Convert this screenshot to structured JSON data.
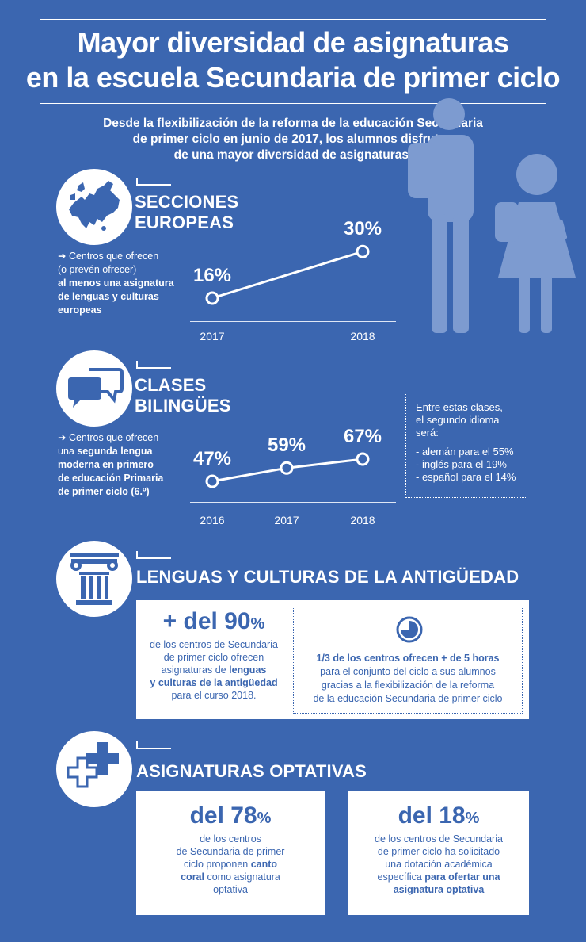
{
  "title": {
    "line1": "Mayor diversidad de asignaturas",
    "line2": "en la escuela Secundaria de primer ciclo"
  },
  "subtitle": {
    "line1": "Desde la flexibilización de la reforma de la educación Secundaria",
    "line2": "de primer ciclo en junio de 2017, los alumnos disfrutan",
    "line3": "de una mayor diversidad de asignaturas."
  },
  "colors": {
    "background": "#3b66b0",
    "card": "#ffffff",
    "accent": "#3b66b0"
  },
  "sections": {
    "europeas": {
      "icon": "europe-map-icon",
      "heading_l1": "SECCIONES",
      "heading_l2": "EUROPEAS",
      "desc": {
        "l1": "➜ Centros que ofrecen",
        "l2": "(o prevén ofrecer)",
        "l3": "al menos una asignatura",
        "l4": "de lenguas y culturas",
        "l5": "europeas"
      }
    },
    "bilingues": {
      "icon": "speech-bubbles-icon",
      "heading_l1": "CLASES",
      "heading_l2": "BILINGÜES",
      "desc": {
        "l1": "➜ Centros que ofrecen",
        "l2a": "una ",
        "l2b": "segunda lengua",
        "l3": "moderna en primero",
        "l4": "de educación Primaria",
        "l5": "de primer ciclo (6.º)"
      },
      "note": {
        "l1": "Entre estas clases,",
        "l2": "el segundo idioma",
        "l3": "será:",
        "i1": "- alemán para el 55%",
        "i2": "- inglés para el 19%",
        "i3": "- español para el 14%"
      }
    },
    "antiguedad": {
      "icon": "ionic-column-icon",
      "heading": "LENGUAS Y CULTURAS DE LA ANTIGÜEDAD",
      "card1": {
        "big": "+ del 90",
        "pct": "%",
        "l1": "de los centros de Secundaria",
        "l2": "de primer ciclo ofrecen",
        "l3a": "asignaturas de ",
        "l3b": "lenguas",
        "l4": "y culturas de la antigüedad",
        "l5": "para el curso 2018."
      },
      "card2": {
        "icon": "clock-icon",
        "l1": "1/3 de los centros ofrecen + de 5 horas",
        "l2": "para el conjunto del ciclo a sus alumnos",
        "l3": "gracias a la flexibilización de la reforma",
        "l4": "de la educación Secundaria de primer ciclo"
      }
    },
    "optativas": {
      "icon": "plus-signs-icon",
      "heading": "ASIGNATURAS OPTATIVAS",
      "card1": {
        "big": "del 78",
        "pct": "%",
        "l1": "de los centros",
        "l2": "de Secundaria de primer",
        "l3a": "ciclo proponen ",
        "l3b": "canto",
        "l4a": "coral",
        "l4b": " como asignatura",
        "l5": "optativa"
      },
      "card2": {
        "big": "del 18",
        "pct": "%",
        "l1": "de los centros de Secundaria",
        "l2": "de primer ciclo ha solicitado",
        "l3": "una dotación académica",
        "l4a": "específica ",
        "l4b": "para ofertar una",
        "l5": "asignatura optativa"
      }
    }
  },
  "chart_data": [
    {
      "type": "line",
      "x": [
        "2017",
        "2018"
      ],
      "series": [
        {
          "values": [
            16,
            30
          ],
          "labels": [
            "16%",
            "30%"
          ]
        }
      ]
    },
    {
      "type": "line",
      "x": [
        "2016",
        "2017",
        "2018"
      ],
      "series": [
        {
          "values": [
            47,
            59,
            67
          ],
          "labels": [
            "47%",
            "59%",
            "67%"
          ]
        }
      ]
    }
  ]
}
